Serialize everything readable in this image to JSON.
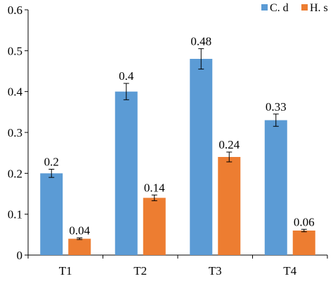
{
  "chart_data": {
    "type": "bar",
    "categories": [
      "T1",
      "T2",
      "T3",
      "T4"
    ],
    "series": [
      {
        "name": "C. d",
        "color": "#5B9BD5",
        "values": [
          0.2,
          0.4,
          0.48,
          0.33
        ],
        "errors": [
          0.01,
          0.02,
          0.025,
          0.015
        ],
        "labels": [
          "0.2",
          "0.4",
          "0.48",
          "0.33"
        ]
      },
      {
        "name": "H. s",
        "color": "#ED7D31",
        "values": [
          0.04,
          0.14,
          0.24,
          0.06
        ],
        "errors": [
          0.002,
          0.007,
          0.012,
          0.003
        ],
        "labels": [
          "0.04",
          "0.14",
          "0.24",
          "0.06"
        ]
      }
    ],
    "ylim": [
      0,
      0.6
    ],
    "yticks": [
      {
        "value": 0,
        "label": "0"
      },
      {
        "value": 0.1,
        "label": "0.1"
      },
      {
        "value": 0.2,
        "label": "0.2"
      },
      {
        "value": 0.3,
        "label": "0.3"
      },
      {
        "value": 0.4,
        "label": "0.4"
      },
      {
        "value": 0.5,
        "label": "0.5"
      },
      {
        "value": 0.6,
        "label": "0.6"
      }
    ],
    "grid": false,
    "legend_position": "top-right",
    "title": "",
    "xlabel": "",
    "ylabel": ""
  }
}
